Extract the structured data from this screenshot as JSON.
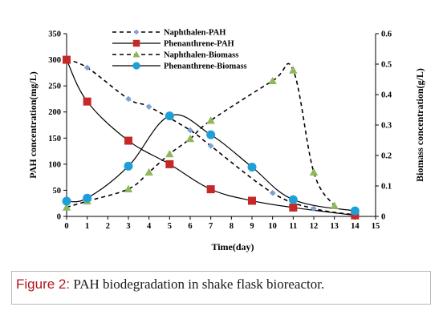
{
  "figure": {
    "caption_lead": "Figure 2:",
    "caption_text": " PAH biodegradation in shake flask bioreactor."
  },
  "chart_data": {
    "type": "line",
    "xlabel": "Time(day)",
    "ylabel_left": "PAH concentration(mg/L)",
    "ylabel_right": "Biomass concentration(g/L)",
    "xlim": [
      0,
      15
    ],
    "ylim_left": [
      0,
      350
    ],
    "ylim_right": [
      0,
      0.6
    ],
    "x_ticks": [
      "0",
      "1",
      "2",
      "3",
      "4",
      "5",
      "6",
      "7",
      "8",
      "9",
      "10",
      "11",
      "12",
      "13",
      "14",
      "15"
    ],
    "y_left_ticks": [
      "0",
      "50",
      "100",
      "150",
      "200",
      "250",
      "300",
      "350"
    ],
    "y_right_ticks": [
      "0",
      "0.1",
      "0.2",
      "0.3",
      "0.4",
      "0.5",
      "0.6"
    ],
    "grid": false,
    "legend_position": "top-center",
    "series": [
      {
        "name": "Naphthalen-PAH",
        "axis": "left",
        "color": "#000000",
        "marker_color": "#7ea1d6",
        "marker": "diamond",
        "dashed": true,
        "x": [
          0,
          1,
          3,
          4,
          6,
          7,
          10,
          12,
          14
        ],
        "y": [
          300,
          285,
          225,
          210,
          165,
          135,
          45,
          15,
          3
        ]
      },
      {
        "name": "Phenanthrene-PAH",
        "axis": "left",
        "color": "#000000",
        "marker_color": "#c62828",
        "marker": "square",
        "dashed": false,
        "x": [
          0,
          1,
          3,
          5,
          7,
          9,
          11,
          14
        ],
        "y": [
          300,
          220,
          145,
          100,
          52,
          30,
          17,
          2
        ]
      },
      {
        "name": "Naphthalen-Biomass",
        "axis": "right",
        "color": "#000000",
        "marker_color": "#8fb85a",
        "marker": "triangle",
        "dashed": true,
        "x": [
          0,
          1,
          3,
          4,
          5,
          6,
          7,
          10,
          11,
          12,
          13
        ],
        "y": [
          0.03,
          0.05,
          0.09,
          0.145,
          0.205,
          0.255,
          0.315,
          0.445,
          0.48,
          0.145,
          0.035
        ]
      },
      {
        "name": "Phenanthrene-Biomass",
        "axis": "right",
        "color": "#000000",
        "marker_color": "#1e9fd8",
        "marker": "circle",
        "dashed": false,
        "x": [
          0,
          1,
          3,
          5,
          7,
          9,
          11,
          14
        ],
        "y": [
          0.05,
          0.06,
          0.165,
          0.33,
          0.268,
          0.162,
          0.055,
          0.018
        ]
      }
    ]
  }
}
